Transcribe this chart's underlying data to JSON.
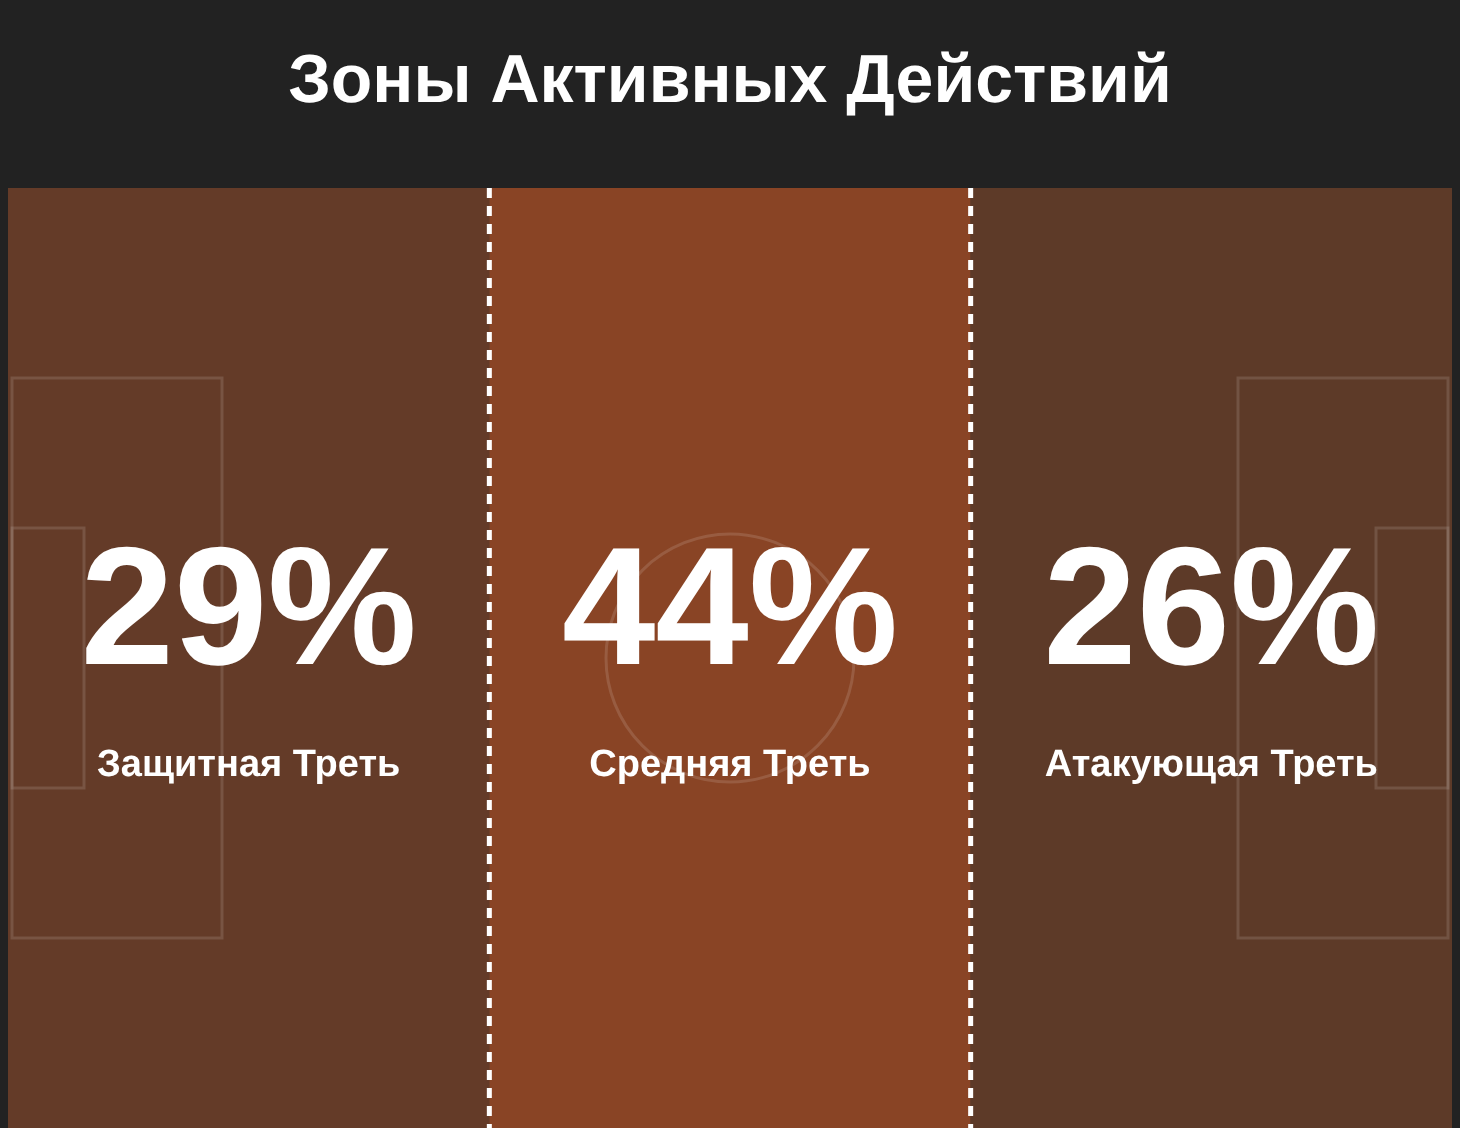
{
  "chart_data": {
    "type": "other",
    "title": "Зоны Активных Действий",
    "categories": [
      "Защитная Треть",
      "Средняя Треть",
      "Атакующая Треть"
    ],
    "values": [
      29,
      44,
      26
    ],
    "value_labels": [
      "29%",
      "44%",
      "26%"
    ]
  }
}
